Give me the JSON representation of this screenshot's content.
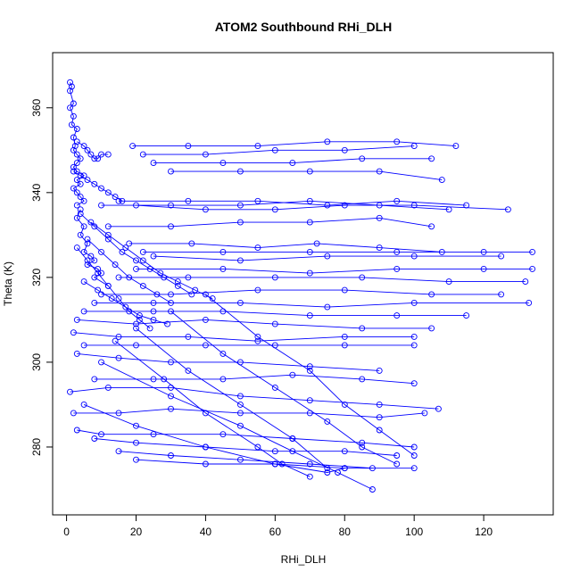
{
  "chart_data": {
    "type": "line",
    "title": "ATOM2 Southbound RHi_DLH",
    "xlabel": "RHi_DLH",
    "ylabel": "Theta (K)",
    "xlim": [
      -4,
      140
    ],
    "ylim": [
      264,
      373
    ],
    "x_ticks": [
      0,
      20,
      40,
      60,
      80,
      100,
      120
    ],
    "y_ticks": [
      280,
      300,
      320,
      340,
      360
    ],
    "grid": false,
    "legend": "none",
    "series_color": "#0000ff",
    "marker": "open-circle",
    "series": [
      {
        "x": [
          1,
          1.5,
          1,
          2,
          1,
          2,
          1.5,
          3,
          2,
          2.5,
          2,
          3,
          4,
          3,
          2,
          3,
          5,
          3,
          4,
          2,
          3,
          4,
          5,
          3
        ],
        "y": [
          366,
          365,
          364,
          361,
          360,
          358,
          356,
          355,
          353,
          351,
          350,
          349,
          348,
          347,
          346,
          345,
          344,
          343,
          342,
          341,
          340,
          339,
          338,
          337
        ]
      },
      {
        "x": [
          2,
          4,
          6,
          8,
          10,
          12,
          14,
          16
        ],
        "y": [
          345,
          344,
          343,
          342,
          341,
          340,
          339,
          338
        ]
      },
      {
        "x": [
          3,
          5,
          6,
          7,
          8,
          9,
          10,
          12
        ],
        "y": [
          352,
          351,
          350,
          349,
          348,
          348,
          349,
          349
        ]
      },
      {
        "x": [
          4,
          3,
          5,
          4,
          6,
          5,
          7,
          8,
          6,
          9,
          10,
          8,
          12
        ],
        "y": [
          336,
          334,
          332,
          330,
          328,
          326,
          325,
          324,
          323,
          322,
          321,
          320,
          318
        ]
      },
      {
        "x": [
          19,
          35,
          55,
          75,
          95,
          112
        ],
        "y": [
          351,
          351,
          351,
          352,
          352,
          351
        ]
      },
      {
        "x": [
          22,
          40,
          60,
          80,
          100
        ],
        "y": [
          349,
          349,
          350,
          350,
          351
        ]
      },
      {
        "x": [
          25,
          45,
          65,
          85,
          105
        ],
        "y": [
          347,
          347,
          347,
          348,
          348
        ]
      },
      {
        "x": [
          30,
          50,
          70,
          90,
          108
        ],
        "y": [
          345,
          345,
          345,
          345,
          343
        ]
      },
      {
        "x": [
          10,
          30,
          50,
          70,
          90,
          110
        ],
        "y": [
          337,
          337,
          337,
          338,
          337,
          336
        ]
      },
      {
        "x": [
          15,
          35,
          55,
          75,
          95,
          115
        ],
        "y": [
          338,
          338,
          338,
          337,
          338,
          337
        ]
      },
      {
        "x": [
          20,
          40,
          60,
          80,
          100,
          127
        ],
        "y": [
          337,
          336,
          336,
          337,
          337,
          336
        ]
      },
      {
        "x": [
          12,
          30,
          50,
          70,
          90,
          105
        ],
        "y": [
          332,
          332,
          333,
          333,
          334,
          332
        ]
      },
      {
        "x": [
          18,
          36,
          55,
          72,
          90,
          108
        ],
        "y": [
          328,
          328,
          327,
          328,
          327,
          326
        ]
      },
      {
        "x": [
          22,
          45,
          70,
          95,
          120,
          134
        ],
        "y": [
          326,
          326,
          326,
          326,
          326,
          326
        ]
      },
      {
        "x": [
          25,
          50,
          75,
          100,
          125
        ],
        "y": [
          325,
          324,
          325,
          325,
          325
        ]
      },
      {
        "x": [
          20,
          45,
          70,
          95,
          120,
          134
        ],
        "y": [
          322,
          322,
          321,
          322,
          322,
          322
        ]
      },
      {
        "x": [
          15,
          35,
          60,
          85,
          110,
          132
        ],
        "y": [
          320,
          320,
          320,
          320,
          319,
          319
        ]
      },
      {
        "x": [
          10,
          30,
          55,
          80,
          105,
          125
        ],
        "y": [
          316,
          316,
          317,
          317,
          316,
          316
        ]
      },
      {
        "x": [
          8,
          25,
          50,
          75,
          100,
          133
        ],
        "y": [
          314,
          314,
          314,
          313,
          314,
          314
        ]
      },
      {
        "x": [
          5,
          25,
          45,
          70,
          95,
          115
        ],
        "y": [
          312,
          312,
          312,
          311,
          311,
          311
        ]
      },
      {
        "x": [
          3,
          20,
          40,
          60,
          85,
          105
        ],
        "y": [
          310,
          309,
          310,
          309,
          308,
          308
        ]
      },
      {
        "x": [
          2,
          15,
          35,
          55,
          80,
          100
        ],
        "y": [
          307,
          306,
          306,
          305,
          306,
          306
        ]
      },
      {
        "x": [
          5,
          20,
          40,
          60,
          80,
          100
        ],
        "y": [
          304,
          304,
          304,
          304,
          304,
          304
        ]
      },
      {
        "x": [
          3,
          15,
          30,
          50,
          70,
          90
        ],
        "y": [
          302,
          301,
          300,
          300,
          299,
          298
        ]
      },
      {
        "x": [
          8,
          25,
          45,
          65,
          85,
          100
        ],
        "y": [
          296,
          296,
          296,
          297,
          296,
          295
        ]
      },
      {
        "x": [
          1,
          12,
          30,
          50,
          70,
          90,
          107
        ],
        "y": [
          293,
          294,
          294,
          292,
          291,
          290,
          289
        ]
      },
      {
        "x": [
          2,
          15,
          30,
          50,
          70,
          90,
          103
        ],
        "y": [
          288,
          288,
          289,
          288,
          288,
          287,
          288
        ]
      },
      {
        "x": [
          3,
          10,
          25,
          45,
          65,
          85,
          100
        ],
        "y": [
          284,
          283,
          283,
          283,
          282,
          281,
          280
        ]
      },
      {
        "x": [
          8,
          20,
          40,
          60,
          80,
          95
        ],
        "y": [
          282,
          281,
          280,
          279,
          279,
          278
        ]
      },
      {
        "x": [
          15,
          30,
          50,
          70,
          88
        ],
        "y": [
          279,
          278,
          277,
          276,
          275
        ]
      },
      {
        "x": [
          20,
          40,
          60,
          80,
          100
        ],
        "y": [
          277,
          276,
          276,
          275,
          275
        ]
      },
      {
        "x": [
          5,
          20,
          40,
          60,
          75,
          80
        ],
        "y": [
          290,
          285,
          280,
          276,
          274,
          275
        ]
      },
      {
        "x": [
          10,
          30,
          50,
          65,
          78,
          88
        ],
        "y": [
          300,
          292,
          285,
          279,
          274,
          270
        ]
      },
      {
        "x": [
          14,
          28,
          40,
          55,
          62,
          70
        ],
        "y": [
          305,
          296,
          288,
          280,
          276,
          273
        ]
      },
      {
        "x": [
          20,
          35,
          50,
          65,
          75
        ],
        "y": [
          308,
          298,
          290,
          282,
          275
        ]
      },
      {
        "x": [
          30,
          45,
          60,
          75,
          85,
          95
        ],
        "y": [
          312,
          302,
          294,
          286,
          280,
          276
        ]
      },
      {
        "x": [
          40,
          55,
          70,
          80,
          90,
          100
        ],
        "y": [
          316,
          306,
          298,
          290,
          284,
          278
        ]
      },
      {
        "x": [
          6,
          10,
          14,
          18,
          22,
          26,
          30
        ],
        "y": [
          329,
          326,
          323,
          320,
          318,
          316,
          314
        ]
      },
      {
        "x": [
          7,
          12,
          17,
          22,
          27,
          32,
          37,
          42
        ],
        "y": [
          333,
          330,
          327,
          324,
          321,
          319,
          317,
          315
        ]
      },
      {
        "x": [
          5,
          9,
          13,
          17,
          21,
          25,
          29
        ],
        "y": [
          319,
          317,
          315,
          313,
          311,
          310,
          309
        ]
      },
      {
        "x": [
          3,
          6,
          9,
          12,
          15,
          18,
          21,
          24
        ],
        "y": [
          327,
          324,
          321,
          318,
          315,
          312,
          310,
          308
        ]
      },
      {
        "x": [
          4,
          8,
          12,
          16,
          20,
          24,
          28,
          32,
          36
        ],
        "y": [
          335,
          332,
          329,
          326,
          324,
          322,
          320,
          318,
          316
        ]
      }
    ]
  }
}
